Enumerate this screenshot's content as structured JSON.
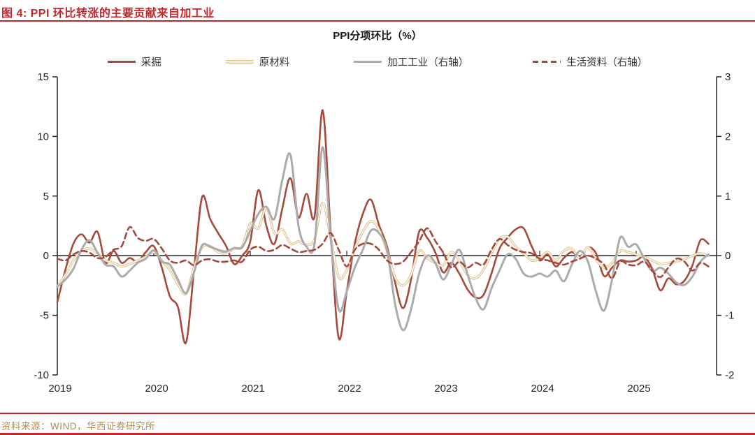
{
  "header": {
    "title": "图 4: PPI 环比转涨的主要贡献来自加工业"
  },
  "footer": {
    "source": "资料来源：WIND，华西证券研究所"
  },
  "colors": {
    "accent_red": "#C5262C",
    "source_text": "#B28C55",
    "axis": "#262626",
    "zero_line": "#1a1a1a"
  },
  "chart_data": {
    "type": "line",
    "title": "PPI分项环比（%）",
    "xlabel": "",
    "ylabel": "",
    "frequency": "monthly",
    "x_start": "2019-01",
    "x_end": "2025-10",
    "x_tick_labels": [
      "2019",
      "2020",
      "2021",
      "2022",
      "2023",
      "2024",
      "2025"
    ],
    "left_axis": {
      "min": -10,
      "max": 15,
      "ticks": [
        15,
        10,
        5,
        0,
        -5,
        -10
      ]
    },
    "right_axis": {
      "min": -2,
      "max": 3,
      "ticks": [
        3,
        2,
        1,
        0,
        -1,
        -2
      ]
    },
    "grid": false,
    "legend_position": "top",
    "series": [
      {
        "name": "采掘",
        "axis": "left",
        "style": "solid",
        "color": "#A64A3C",
        "width": 2.6,
        "values": [
          -3.9,
          -1.2,
          1.0,
          1.8,
          1.1,
          2.0,
          -0.6,
          0.4,
          -0.6,
          -0.2,
          -0.5,
          0.3,
          0.8,
          -1.0,
          -3.4,
          -4.3,
          -7.3,
          -1.2,
          4.9,
          3.1,
          1.9,
          0.8,
          -0.7,
          0.0,
          1.2,
          5.5,
          2.5,
          1.0,
          4.0,
          6.5,
          3.2,
          5.2,
          3.3,
          12.2,
          2.0,
          -6.9,
          -3.0,
          1.0,
          3.5,
          4.7,
          2.6,
          0.8,
          -2.2,
          -4.4,
          -2.0,
          2.0,
          1.5,
          0.3,
          -1.4,
          -0.6,
          -1.5,
          -2.8,
          -3.5,
          -3.3,
          -1.5,
          0.6,
          1.5,
          2.2,
          2.3,
          0.8,
          -0.4,
          0.1,
          -0.9,
          -0.2,
          0.3,
          -0.1,
          0.7,
          0.2,
          -1.7,
          -1.0,
          -0.4,
          -0.5,
          -0.4,
          -0.1,
          -1.1,
          -2.9,
          -1.9,
          -2.4,
          -2.1,
          -0.8,
          1.3,
          1.0
        ]
      },
      {
        "name": "原材料",
        "axis": "left",
        "style": "double",
        "color": "#E0C38D",
        "width": 3.4,
        "values": [
          -2.6,
          -1.6,
          -0.4,
          0.4,
          0.6,
          0.2,
          -0.4,
          -0.6,
          -0.9,
          -0.7,
          -0.4,
          -0.1,
          0.3,
          -0.4,
          -1.2,
          -2.4,
          -3.2,
          -1.0,
          0.7,
          0.8,
          0.3,
          0.2,
          0.6,
          0.8,
          2.7,
          2.3,
          4.0,
          1.9,
          2.2,
          1.0,
          1.2,
          0.9,
          1.4,
          4.4,
          1.5,
          -1.8,
          -1.2,
          0.6,
          2.0,
          2.9,
          2.2,
          0.4,
          -1.8,
          -2.5,
          -1.6,
          0.4,
          -0.2,
          -0.6,
          -0.8,
          0.3,
          -0.4,
          -1.6,
          -1.9,
          -1.2,
          0.2,
          1.4,
          1.6,
          0.8,
          0.2,
          -0.4,
          -0.2,
          0.3,
          -0.4,
          0.4,
          0.6,
          -0.2,
          0.7,
          -0.3,
          -1.0,
          -0.6,
          0.4,
          0.3,
          0.1,
          -0.1,
          -0.4,
          -0.7,
          -0.6,
          -0.5,
          -0.3,
          0.0,
          0.2,
          0.0
        ]
      },
      {
        "name": "加工工业（右轴）",
        "axis": "right",
        "style": "solid",
        "color": "#ABABAB",
        "width": 3.0,
        "values": [
          -0.52,
          -0.4,
          -0.22,
          0.1,
          0.26,
          0.05,
          -0.15,
          -0.18,
          -0.35,
          -0.25,
          -0.12,
          -0.05,
          0.09,
          -0.1,
          -0.15,
          -0.4,
          -0.63,
          -0.28,
          0.17,
          0.15,
          0.1,
          0.07,
          0.13,
          0.14,
          0.42,
          0.7,
          0.82,
          0.62,
          1.28,
          1.69,
          0.5,
          0.15,
          0.2,
          1.82,
          0.3,
          -0.9,
          -0.6,
          -0.2,
          0.1,
          0.42,
          0.38,
          0.1,
          -0.8,
          -1.25,
          -0.9,
          -0.3,
          0.0,
          -0.12,
          -0.4,
          -0.15,
          0.1,
          -0.3,
          -0.7,
          -0.9,
          -0.55,
          -0.25,
          0.02,
          -0.05,
          -0.3,
          -0.35,
          -0.3,
          -0.35,
          -0.25,
          -0.43,
          -0.15,
          0.08,
          -0.1,
          -0.6,
          -0.92,
          -0.4,
          0.3,
          0.15,
          0.19,
          -0.05,
          -0.26,
          -0.2,
          -0.3,
          -0.45,
          -0.49,
          -0.35,
          -0.1,
          0.02
        ]
      },
      {
        "name": "生活资料（右轴）",
        "axis": "right",
        "style": "dashed",
        "color": "#A6493D",
        "width": 2.6,
        "values": [
          -0.05,
          -0.08,
          0.02,
          0.08,
          0.05,
          -0.04,
          -0.02,
          0.1,
          0.16,
          0.48,
          0.3,
          0.25,
          0.28,
          0.12,
          -0.08,
          -0.12,
          -0.08,
          -0.16,
          -0.08,
          -0.06,
          -0.1,
          -0.1,
          -0.08,
          -0.1,
          0.1,
          0.15,
          0.08,
          0.1,
          0.18,
          0.12,
          0.06,
          0.08,
          0.1,
          0.2,
          0.38,
          0.1,
          -0.18,
          0.1,
          0.2,
          0.2,
          0.1,
          -0.08,
          -0.14,
          -0.1,
          0.06,
          0.24,
          0.46,
          0.25,
          0.05,
          -0.2,
          -0.1,
          -0.2,
          -0.12,
          -0.15,
          0.1,
          0.28,
          0.18,
          0.1,
          0.06,
          0.04,
          -0.05,
          -0.08,
          -0.12,
          -0.15,
          -0.1,
          -0.05,
          0.0,
          -0.05,
          -0.15,
          -0.38,
          -0.1,
          -0.15,
          -0.16,
          -0.1,
          -0.25,
          -0.36,
          -0.2,
          -0.05,
          -0.1,
          -0.25,
          -0.12,
          -0.18
        ]
      }
    ]
  }
}
